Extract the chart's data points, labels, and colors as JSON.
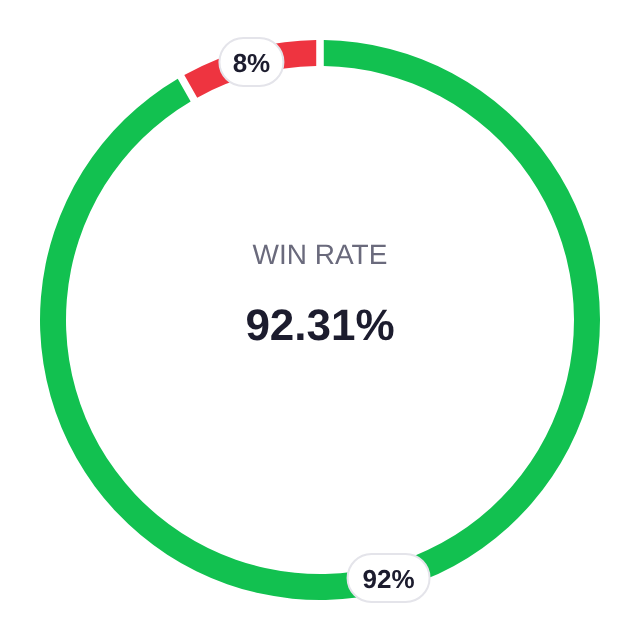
{
  "chart_data": {
    "type": "donut",
    "title": "WIN RATE",
    "annotations": [
      "92.31%"
    ],
    "categories": [
      null,
      null
    ],
    "values": [
      92,
      8
    ],
    "colors": [
      "#12c150",
      "#ee3440"
    ],
    "value_labels": [
      "92%",
      "8%"
    ]
  }
}
